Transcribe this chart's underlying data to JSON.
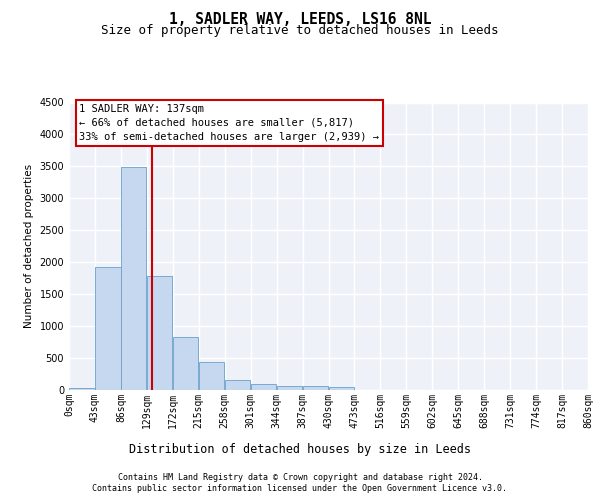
{
  "title": "1, SADLER WAY, LEEDS, LS16 8NL",
  "subtitle": "Size of property relative to detached houses in Leeds",
  "xlabel": "Distribution of detached houses by size in Leeds",
  "ylabel": "Number of detached properties",
  "footnote1": "Contains HM Land Registry data © Crown copyright and database right 2024.",
  "footnote2": "Contains public sector information licensed under the Open Government Licence v3.0.",
  "bar_color": "#c5d8f0",
  "bar_edge_color": "#6aa0cc",
  "annotation_line1": "1 SADLER WAY: 137sqm",
  "annotation_line2": "← 66% of detached houses are smaller (5,817)",
  "annotation_line3": "33% of semi-detached houses are larger (2,939) →",
  "annotation_box_color": "#ffffff",
  "annotation_box_edge": "#cc0000",
  "vline_color": "#cc0000",
  "property_size_sqm": 137,
  "bin_edges": [
    0,
    43,
    86,
    129,
    172,
    215,
    258,
    301,
    344,
    387,
    430,
    473,
    516,
    559,
    602,
    645,
    688,
    731,
    774,
    817,
    860
  ],
  "bar_values": [
    30,
    1920,
    3490,
    1780,
    830,
    440,
    160,
    90,
    65,
    55,
    50,
    0,
    0,
    0,
    0,
    0,
    0,
    0,
    0,
    0
  ],
  "ylim": [
    0,
    4500
  ],
  "yticks": [
    0,
    500,
    1000,
    1500,
    2000,
    2500,
    3000,
    3500,
    4000,
    4500
  ],
  "bg_color": "#eef2f8",
  "grid_color": "#ffffff",
  "title_fontsize": 10.5,
  "subtitle_fontsize": 9,
  "axis_label_fontsize": 8,
  "ylabel_fontsize": 7.5,
  "tick_fontsize": 7,
  "footnote_fontsize": 6
}
